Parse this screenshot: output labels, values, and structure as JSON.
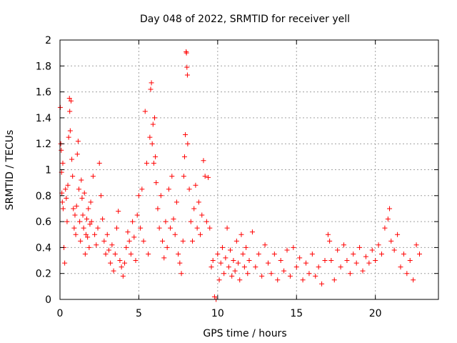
{
  "chart_data": {
    "type": "scatter",
    "title": "Day 048 of 2022, SRMTID for receiver yell",
    "xlabel": "GPS time / hours",
    "ylabel": "SRMTID / TECUs",
    "xlim": [
      0,
      24
    ],
    "ylim": [
      0,
      2
    ],
    "xticks": [
      0,
      5,
      10,
      15,
      20
    ],
    "xtick_labels": [
      "0",
      "5",
      "10",
      "15",
      "20"
    ],
    "yticks": [
      0,
      0.2,
      0.4,
      0.6,
      0.8,
      1,
      1.2,
      1.4,
      1.6,
      1.8,
      2
    ],
    "ytick_labels": [
      "0",
      "0.2",
      "0.4",
      "0.6",
      "0.8",
      "1",
      "1.2",
      "1.4",
      "1.6",
      "1.8",
      "2"
    ],
    "grid": true,
    "marker": "+",
    "color": "#ff0000",
    "series": [
      {
        "name": "SRMTID",
        "points": [
          [
            0.02,
            1.48
          ],
          [
            0.05,
            1.2
          ],
          [
            0.08,
            1.15
          ],
          [
            0.1,
            0.98
          ],
          [
            0.12,
            0.82
          ],
          [
            0.15,
            0.75
          ],
          [
            0.18,
            1.05
          ],
          [
            0.2,
            0.7
          ],
          [
            0.25,
            0.4
          ],
          [
            0.3,
            0.28
          ],
          [
            0.35,
            0.85
          ],
          [
            0.4,
            0.78
          ],
          [
            0.45,
            0.6
          ],
          [
            0.5,
            0.88
          ],
          [
            0.55,
            1.25
          ],
          [
            0.6,
            1.55
          ],
          [
            0.62,
            1.45
          ],
          [
            0.65,
            1.3
          ],
          [
            0.7,
            1.53
          ],
          [
            0.75,
            1.08
          ],
          [
            0.8,
            0.95
          ],
          [
            0.85,
            0.7
          ],
          [
            0.9,
            0.55
          ],
          [
            0.95,
            0.65
          ],
          [
            1.0,
            0.5
          ],
          [
            1.05,
            0.72
          ],
          [
            1.1,
            1.12
          ],
          [
            1.15,
            1.22
          ],
          [
            1.2,
            0.85
          ],
          [
            1.25,
            0.6
          ],
          [
            1.3,
            0.45
          ],
          [
            1.35,
            0.92
          ],
          [
            1.4,
            0.78
          ],
          [
            1.45,
            0.65
          ],
          [
            1.5,
            0.55
          ],
          [
            1.55,
            0.82
          ],
          [
            1.6,
            0.35
          ],
          [
            1.65,
            0.5
          ],
          [
            1.7,
            0.62
          ],
          [
            1.75,
            0.48
          ],
          [
            1.8,
            0.7
          ],
          [
            1.85,
            0.4
          ],
          [
            1.9,
            0.58
          ],
          [
            1.95,
            0.75
          ],
          [
            2.0,
            0.6
          ],
          [
            2.1,
            0.95
          ],
          [
            2.2,
            0.5
          ],
          [
            2.3,
            0.42
          ],
          [
            2.4,
            0.55
          ],
          [
            2.5,
            1.05
          ],
          [
            2.6,
            0.8
          ],
          [
            2.7,
            0.62
          ],
          [
            2.8,
            0.45
          ],
          [
            2.9,
            0.35
          ],
          [
            3.0,
            0.5
          ],
          [
            3.1,
            0.38
          ],
          [
            3.2,
            0.28
          ],
          [
            3.3,
            0.42
          ],
          [
            3.4,
            0.22
          ],
          [
            3.5,
            0.35
          ],
          [
            3.6,
            0.55
          ],
          [
            3.7,
            0.68
          ],
          [
            3.8,
            0.3
          ],
          [
            3.9,
            0.25
          ],
          [
            4.0,
            0.18
          ],
          [
            4.1,
            0.28
          ],
          [
            4.2,
            0.4
          ],
          [
            4.3,
            0.52
          ],
          [
            4.4,
            0.45
          ],
          [
            4.5,
            0.35
          ],
          [
            4.6,
            0.6
          ],
          [
            4.7,
            0.48
          ],
          [
            4.8,
            0.3
          ],
          [
            4.9,
            0.65
          ],
          [
            5.0,
            0.8
          ],
          [
            5.1,
            0.55
          ],
          [
            5.2,
            0.85
          ],
          [
            5.3,
            0.45
          ],
          [
            5.4,
            1.45
          ],
          [
            5.5,
            1.05
          ],
          [
            5.6,
            0.35
          ],
          [
            5.7,
            1.25
          ],
          [
            5.75,
            1.62
          ],
          [
            5.8,
            1.67
          ],
          [
            5.85,
            1.2
          ],
          [
            5.9,
            1.35
          ],
          [
            5.95,
            1.05
          ],
          [
            6.0,
            1.4
          ],
          [
            6.05,
            1.1
          ],
          [
            6.1,
            0.9
          ],
          [
            6.2,
            0.7
          ],
          [
            6.3,
            0.55
          ],
          [
            6.4,
            0.8
          ],
          [
            6.5,
            0.45
          ],
          [
            6.6,
            0.32
          ],
          [
            6.7,
            0.6
          ],
          [
            6.8,
            0.4
          ],
          [
            6.9,
            0.85
          ],
          [
            7.0,
            0.55
          ],
          [
            7.1,
            0.95
          ],
          [
            7.2,
            0.62
          ],
          [
            7.3,
            0.5
          ],
          [
            7.4,
            0.75
          ],
          [
            7.5,
            0.35
          ],
          [
            7.6,
            0.28
          ],
          [
            7.7,
            0.2
          ],
          [
            7.8,
            0.45
          ],
          [
            7.85,
            0.95
          ],
          [
            7.9,
            1.1
          ],
          [
            7.95,
            1.27
          ],
          [
            8.0,
            1.91
          ],
          [
            8.02,
            1.9
          ],
          [
            8.05,
            1.79
          ],
          [
            8.08,
            1.73
          ],
          [
            8.1,
            1.2
          ],
          [
            8.2,
            0.85
          ],
          [
            8.3,
            0.6
          ],
          [
            8.4,
            0.45
          ],
          [
            8.5,
            0.7
          ],
          [
            8.6,
            0.88
          ],
          [
            8.7,
            0.55
          ],
          [
            8.8,
            0.75
          ],
          [
            8.9,
            0.5
          ],
          [
            9.0,
            0.65
          ],
          [
            9.1,
            1.07
          ],
          [
            9.2,
            0.95
          ],
          [
            9.3,
            0.6
          ],
          [
            9.4,
            0.94
          ],
          [
            9.5,
            0.55
          ],
          [
            9.6,
            0.25
          ],
          [
            9.7,
            0.3
          ],
          [
            9.8,
            0.02
          ],
          [
            9.9,
            0.0
          ],
          [
            10.0,
            0.35
          ],
          [
            10.1,
            0.15
          ],
          [
            10.2,
            0.28
          ],
          [
            10.3,
            0.4
          ],
          [
            10.4,
            0.2
          ],
          [
            10.5,
            0.32
          ],
          [
            10.6,
            0.55
          ],
          [
            10.7,
            0.25
          ],
          [
            10.8,
            0.38
          ],
          [
            10.9,
            0.18
          ],
          [
            11.0,
            0.3
          ],
          [
            11.1,
            0.22
          ],
          [
            11.2,
            0.45
          ],
          [
            11.3,
            0.28
          ],
          [
            11.4,
            0.15
          ],
          [
            11.5,
            0.5
          ],
          [
            11.6,
            0.35
          ],
          [
            11.7,
            0.25
          ],
          [
            11.8,
            0.4
          ],
          [
            11.9,
            0.2
          ],
          [
            12.0,
            0.3
          ],
          [
            12.2,
            0.52
          ],
          [
            12.4,
            0.25
          ],
          [
            12.6,
            0.35
          ],
          [
            12.8,
            0.18
          ],
          [
            13.0,
            0.42
          ],
          [
            13.2,
            0.28
          ],
          [
            13.4,
            0.2
          ],
          [
            13.6,
            0.35
          ],
          [
            13.8,
            0.15
          ],
          [
            14.0,
            0.3
          ],
          [
            14.2,
            0.22
          ],
          [
            14.4,
            0.38
          ],
          [
            14.6,
            0.18
          ],
          [
            14.8,
            0.4
          ],
          [
            15.0,
            0.25
          ],
          [
            15.2,
            0.32
          ],
          [
            15.4,
            0.15
          ],
          [
            15.6,
            0.28
          ],
          [
            15.8,
            0.2
          ],
          [
            16.0,
            0.35
          ],
          [
            16.2,
            0.18
          ],
          [
            16.4,
            0.25
          ],
          [
            16.6,
            0.12
          ],
          [
            16.8,
            0.3
          ],
          [
            17.0,
            0.5
          ],
          [
            17.1,
            0.45
          ],
          [
            17.2,
            0.3
          ],
          [
            17.4,
            0.15
          ],
          [
            17.6,
            0.38
          ],
          [
            17.8,
            0.25
          ],
          [
            18.0,
            0.42
          ],
          [
            18.2,
            0.3
          ],
          [
            18.4,
            0.2
          ],
          [
            18.6,
            0.35
          ],
          [
            18.8,
            0.28
          ],
          [
            19.0,
            0.4
          ],
          [
            19.2,
            0.22
          ],
          [
            19.4,
            0.33
          ],
          [
            19.6,
            0.28
          ],
          [
            19.8,
            0.38
          ],
          [
            20.0,
            0.3
          ],
          [
            20.2,
            0.42
          ],
          [
            20.4,
            0.35
          ],
          [
            20.6,
            0.55
          ],
          [
            20.8,
            0.62
          ],
          [
            20.9,
            0.7
          ],
          [
            21.0,
            0.45
          ],
          [
            21.2,
            0.38
          ],
          [
            21.4,
            0.5
          ],
          [
            21.6,
            0.25
          ],
          [
            21.8,
            0.35
          ],
          [
            22.0,
            0.2
          ],
          [
            22.2,
            0.3
          ],
          [
            22.4,
            0.15
          ],
          [
            22.6,
            0.42
          ],
          [
            22.8,
            0.35
          ]
        ]
      }
    ]
  }
}
